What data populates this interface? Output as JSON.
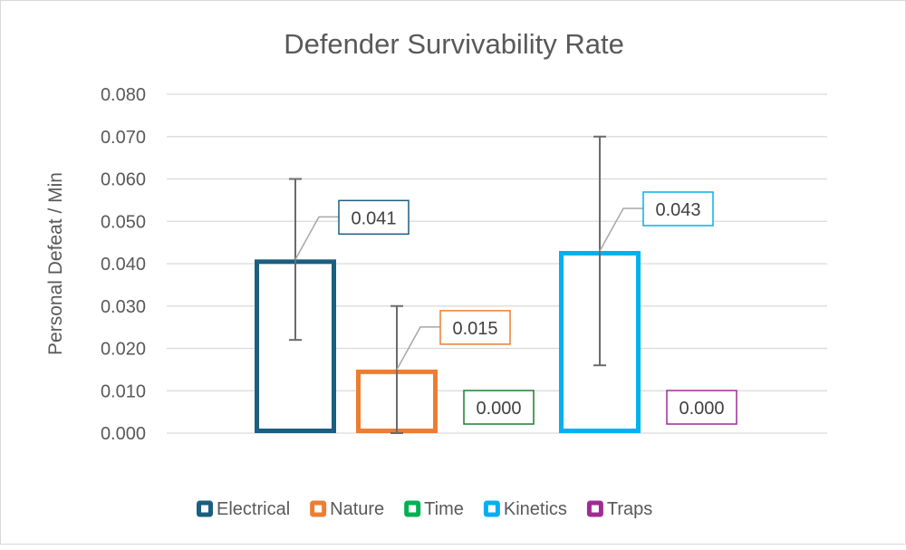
{
  "chart_data": {
    "type": "bar",
    "title": "Defender Survivability Rate",
    "xlabel": "",
    "ylabel": "Personal Defeat / Min",
    "ylim": [
      0,
      0.08
    ],
    "ytick_step": 0.01,
    "yticks": [
      "0.000",
      "0.010",
      "0.020",
      "0.030",
      "0.040",
      "0.050",
      "0.060",
      "0.070",
      "0.080"
    ],
    "grid": true,
    "legend_position": "bottom",
    "categories": [
      ""
    ],
    "series": [
      {
        "name": "Electrical",
        "color": "#1B5E80",
        "values": [
          0.041
        ],
        "label": "0.041",
        "error_low": 0.022,
        "error_high": 0.06
      },
      {
        "name": "Nature",
        "color": "#ED7D31",
        "values": [
          0.015
        ],
        "label": "0.015",
        "error_low": 0.0,
        "error_high": 0.03
      },
      {
        "name": "Time",
        "color": "#1B7F2C",
        "legend_color": "#00B050",
        "values": [
          0.0
        ],
        "label": "0.000",
        "error_low": null,
        "error_high": null
      },
      {
        "name": "Kinetics",
        "color": "#00B0F0",
        "values": [
          0.043
        ],
        "label": "0.043",
        "error_low": 0.016,
        "error_high": 0.07
      },
      {
        "name": "Traps",
        "color": "#A02B93",
        "values": [
          0.0
        ],
        "label": "0.000",
        "error_low": null,
        "error_high": null
      }
    ]
  }
}
